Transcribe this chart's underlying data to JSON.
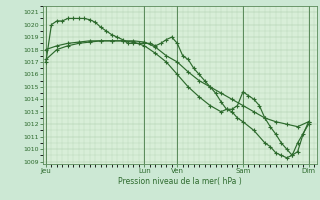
{
  "title": "",
  "xlabel": "Pression niveau de la mer( hPa )",
  "bg_color": "#cce8d4",
  "plot_bg_color": "#d8eed8",
  "line_color": "#2d6a2d",
  "grid_color": "#aaccaa",
  "ylim": [
    1008.8,
    1021.5
  ],
  "yticks": [
    1009,
    1010,
    1011,
    1012,
    1013,
    1014,
    1015,
    1016,
    1017,
    1018,
    1019,
    1020,
    1021
  ],
  "day_labels": [
    "Jeu",
    "Lun",
    "Ven",
    "Sam",
    "Dim"
  ],
  "day_positions": [
    0,
    18,
    24,
    36,
    48
  ],
  "xlim": [
    -0.5,
    49.5
  ],
  "line1_x": [
    0,
    1,
    2,
    3,
    4,
    5,
    6,
    7,
    8,
    9,
    10,
    11,
    12,
    13,
    14,
    15,
    16,
    17,
    18,
    19,
    20,
    21,
    22,
    23,
    24,
    25,
    26,
    27,
    28,
    29,
    30,
    31,
    32,
    33,
    34,
    35,
    36,
    37,
    38,
    39,
    40,
    41,
    42,
    43,
    44,
    45,
    46,
    47,
    48
  ],
  "line1_y": [
    1017.0,
    1020.0,
    1020.3,
    1020.3,
    1020.5,
    1020.5,
    1020.5,
    1020.5,
    1020.4,
    1020.2,
    1019.8,
    1019.5,
    1019.2,
    1019.0,
    1018.8,
    1018.5,
    1018.5,
    1018.5,
    1018.5,
    1018.5,
    1018.3,
    1018.5,
    1018.8,
    1019.0,
    1018.5,
    1017.5,
    1017.2,
    1016.5,
    1016.0,
    1015.5,
    1015.0,
    1014.5,
    1013.8,
    1013.2,
    1013.2,
    1013.5,
    1014.6,
    1014.3,
    1014.0,
    1013.5,
    1012.5,
    1011.8,
    1011.2,
    1010.5,
    1010.0,
    1009.5,
    1009.8,
    1011.2,
    1012.2
  ],
  "line2_x": [
    0,
    2,
    4,
    6,
    8,
    10,
    12,
    14,
    16,
    18,
    20,
    22,
    24,
    26,
    28,
    30,
    32,
    34,
    36,
    38,
    40,
    42,
    44,
    46,
    48
  ],
  "line2_y": [
    1018.0,
    1018.3,
    1018.5,
    1018.6,
    1018.7,
    1018.7,
    1018.7,
    1018.7,
    1018.7,
    1018.6,
    1018.2,
    1017.5,
    1017.0,
    1016.2,
    1015.5,
    1015.0,
    1014.5,
    1014.0,
    1013.5,
    1013.0,
    1012.5,
    1012.2,
    1012.0,
    1011.8,
    1012.2
  ],
  "line3_x": [
    0,
    2,
    4,
    6,
    8,
    10,
    12,
    14,
    16,
    18,
    20,
    22,
    24,
    26,
    28,
    30,
    32,
    33,
    34,
    35,
    36,
    38,
    40,
    41,
    42,
    43,
    44,
    45,
    46,
    48
  ],
  "line3_y": [
    1017.2,
    1018.0,
    1018.3,
    1018.5,
    1018.6,
    1018.7,
    1018.7,
    1018.7,
    1018.6,
    1018.3,
    1017.7,
    1017.0,
    1016.0,
    1015.0,
    1014.2,
    1013.5,
    1013.0,
    1013.2,
    1013.0,
    1012.5,
    1012.2,
    1011.5,
    1010.5,
    1010.2,
    1009.7,
    1009.5,
    1009.3,
    1009.5,
    1010.5,
    1012.0
  ]
}
